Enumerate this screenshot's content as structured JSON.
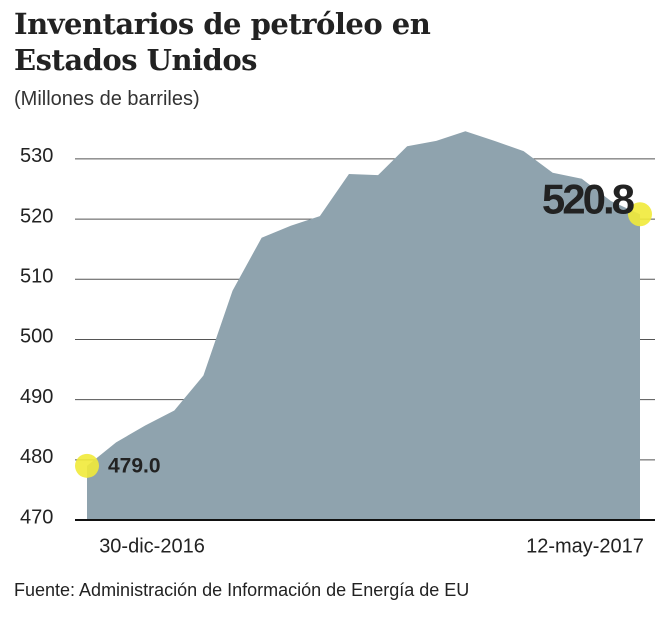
{
  "chart_data": {
    "type": "area",
    "title": "Inventarios de petróleo en Estados Unidos",
    "subtitle": "(Millones de barriles)",
    "source": "Fuente: Administración de Información de Energía de EU",
    "categories": [
      "30-dic-2016",
      null,
      null,
      null,
      null,
      null,
      null,
      null,
      null,
      null,
      null,
      null,
      null,
      null,
      null,
      null,
      null,
      null,
      null,
      "12-may-2017"
    ],
    "values": [
      479.0,
      482.9,
      485.7,
      488.2,
      494.0,
      508.1,
      516.9,
      518.9,
      520.5,
      527.5,
      527.3,
      532.1,
      533.0,
      534.6,
      533.0,
      531.3,
      527.7,
      526.7,
      523.0,
      520.8
    ],
    "value_labels": [
      "479.0",
      null,
      null,
      null,
      null,
      null,
      null,
      null,
      null,
      null,
      null,
      null,
      null,
      null,
      null,
      null,
      null,
      null,
      null,
      "520.8"
    ],
    "color": "#8fa3ae",
    "marker_color": "#f1ea3a",
    "ylim": [
      470,
      535
    ],
    "yticks": [
      470,
      480,
      490,
      500,
      510,
      520,
      530
    ],
    "grid": true
  }
}
